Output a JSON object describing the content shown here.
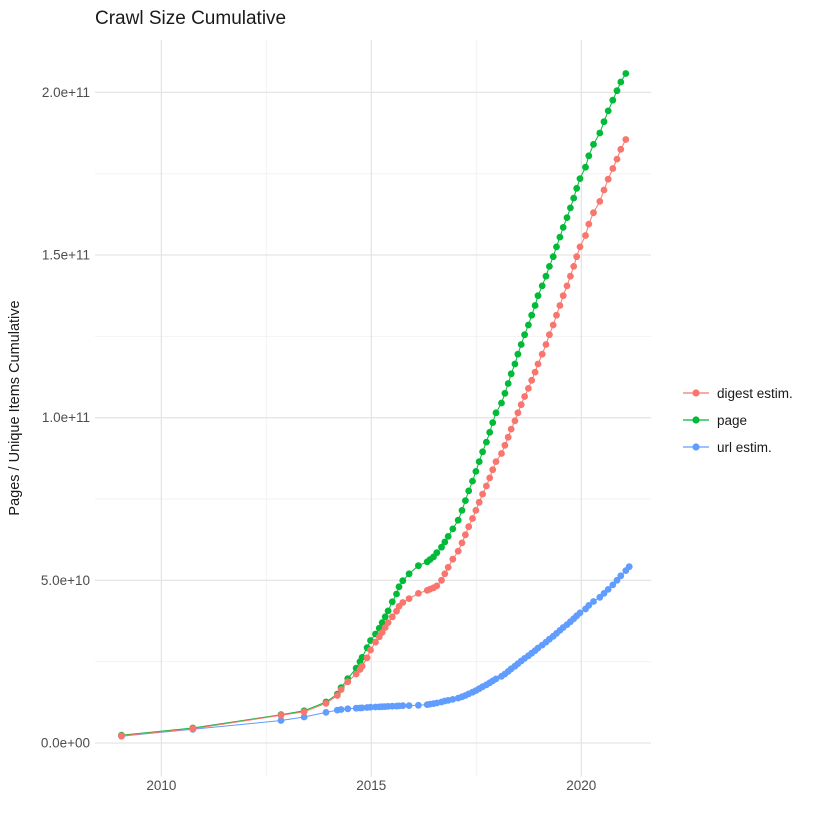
{
  "chart_data": {
    "type": "scatter",
    "title": "Crawl Size Cumulative",
    "xlabel": "",
    "ylabel": "Pages / Unique Items Cumulative",
    "value_unit": 1000000000.0,
    "x_range": [
      2008.42,
      2021.66
    ],
    "y_range_e9": [
      -10.3,
      216.1
    ],
    "grid": "on",
    "legend_position": "right",
    "x_axis": {
      "major_breaks": [
        {
          "label": "2010",
          "value": 2010
        },
        {
          "label": "2015",
          "value": 2015
        },
        {
          "label": "2020",
          "value": 2020
        }
      ],
      "minor_breaks": [
        2012.5,
        2017.5
      ]
    },
    "y_axis": {
      "major_breaks": [
        {
          "label": "0.0e+00",
          "value": 0
        },
        {
          "label": "5.0e+10",
          "value": 50
        },
        {
          "label": "1.0e+11",
          "value": 100
        },
        {
          "label": "1.5e+11",
          "value": 150
        },
        {
          "label": "2.0e+11",
          "value": 200
        }
      ],
      "minor_breaks": [
        25,
        75,
        125,
        175
      ]
    },
    "colors": {
      "digest": "#F8766D",
      "page": "#00BA38",
      "url": "#619CFF",
      "grid_major": "#E5E5E5",
      "grid_minor": "#F2F2F2",
      "tick_text": "#4D4D4D",
      "title_text": "#1A1A1A",
      "legend_text": "#1A1A1A"
    },
    "series": [
      {
        "name": "digest estim.",
        "color_key": "digest",
        "points": [
          [
            2009.05,
            2.2
          ],
          [
            2010.75,
            4.4
          ],
          [
            2012.85,
            8.5
          ],
          [
            2013.4,
            9.6
          ],
          [
            2013.92,
            12.2
          ],
          [
            2014.19,
            14.6
          ],
          [
            2014.28,
            16.4
          ],
          [
            2014.44,
            18.8
          ],
          [
            2014.64,
            21.2
          ],
          [
            2014.73,
            22.6
          ],
          [
            2014.78,
            23.6
          ],
          [
            2014.9,
            26.2
          ],
          [
            2014.98,
            28.6
          ],
          [
            2015.1,
            31.0
          ],
          [
            2015.19,
            32.6
          ],
          [
            2015.26,
            34.0
          ],
          [
            2015.33,
            35.5
          ],
          [
            2015.4,
            37.0
          ],
          [
            2015.5,
            38.8
          ],
          [
            2015.6,
            40.5
          ],
          [
            2015.66,
            42.0
          ],
          [
            2015.75,
            43.2
          ],
          [
            2015.9,
            44.4
          ],
          [
            2016.12,
            46.0
          ],
          [
            2016.33,
            46.9
          ],
          [
            2016.4,
            47.3
          ],
          [
            2016.48,
            47.7
          ],
          [
            2016.56,
            48.3
          ],
          [
            2016.67,
            50.0
          ],
          [
            2016.75,
            52.0
          ],
          [
            2016.83,
            54.0
          ],
          [
            2016.94,
            56.5
          ],
          [
            2017.07,
            59.0
          ],
          [
            2017.16,
            61.5
          ],
          [
            2017.24,
            64.0
          ],
          [
            2017.32,
            66.5
          ],
          [
            2017.41,
            69.0
          ],
          [
            2017.49,
            71.5
          ],
          [
            2017.57,
            74.0
          ],
          [
            2017.65,
            76.5
          ],
          [
            2017.74,
            79.0
          ],
          [
            2017.82,
            81.5
          ],
          [
            2017.89,
            84.0
          ],
          [
            2017.97,
            86.5
          ],
          [
            2018.1,
            89.0
          ],
          [
            2018.18,
            91.5
          ],
          [
            2018.26,
            94.0
          ],
          [
            2018.33,
            96.5
          ],
          [
            2018.42,
            99.0
          ],
          [
            2018.49,
            101.5
          ],
          [
            2018.57,
            104.0
          ],
          [
            2018.65,
            106.5
          ],
          [
            2018.74,
            109.0
          ],
          [
            2018.82,
            111.5
          ],
          [
            2018.9,
            114.0
          ],
          [
            2018.97,
            116.5
          ],
          [
            2019.07,
            119.5
          ],
          [
            2019.16,
            122.5
          ],
          [
            2019.24,
            125.5
          ],
          [
            2019.33,
            128.5
          ],
          [
            2019.41,
            131.5
          ],
          [
            2019.49,
            134.5
          ],
          [
            2019.57,
            137.5
          ],
          [
            2019.66,
            140.5
          ],
          [
            2019.74,
            143.5
          ],
          [
            2019.82,
            146.5
          ],
          [
            2019.89,
            149.5
          ],
          [
            2019.97,
            152.5
          ],
          [
            2020.1,
            156.0
          ],
          [
            2020.18,
            159.5
          ],
          [
            2020.29,
            163.0
          ],
          [
            2020.44,
            166.5
          ],
          [
            2020.54,
            170.0
          ],
          [
            2020.64,
            173.3
          ],
          [
            2020.75,
            176.6
          ],
          [
            2020.85,
            179.5
          ],
          [
            2020.94,
            182.5
          ],
          [
            2021.06,
            185.5
          ]
        ]
      },
      {
        "name": "page",
        "color_key": "page",
        "points": [
          [
            2009.05,
            2.4
          ],
          [
            2010.75,
            4.6
          ],
          [
            2012.85,
            8.7
          ],
          [
            2013.4,
            9.9
          ],
          [
            2013.92,
            12.6
          ],
          [
            2014.19,
            15.0
          ],
          [
            2014.28,
            17.0
          ],
          [
            2014.44,
            19.8
          ],
          [
            2014.64,
            23.0
          ],
          [
            2014.73,
            25.0
          ],
          [
            2014.78,
            26.3
          ],
          [
            2014.9,
            29.3
          ],
          [
            2014.98,
            31.5
          ],
          [
            2015.1,
            33.5
          ],
          [
            2015.19,
            35.3
          ],
          [
            2015.26,
            37.0
          ],
          [
            2015.33,
            38.8
          ],
          [
            2015.4,
            40.6
          ],
          [
            2015.5,
            43.4
          ],
          [
            2015.6,
            45.8
          ],
          [
            2015.66,
            48.0
          ],
          [
            2015.75,
            49.9
          ],
          [
            2015.9,
            52.0
          ],
          [
            2016.12,
            54.5
          ],
          [
            2016.33,
            55.7
          ],
          [
            2016.4,
            56.4
          ],
          [
            2016.48,
            57.2
          ],
          [
            2016.56,
            58.5
          ],
          [
            2016.67,
            60.2
          ],
          [
            2016.75,
            61.8
          ],
          [
            2016.83,
            63.5
          ],
          [
            2016.94,
            65.8
          ],
          [
            2017.07,
            68.5
          ],
          [
            2017.16,
            71.5
          ],
          [
            2017.24,
            74.5
          ],
          [
            2017.32,
            77.5
          ],
          [
            2017.41,
            80.5
          ],
          [
            2017.49,
            83.5
          ],
          [
            2017.57,
            86.5
          ],
          [
            2017.65,
            89.5
          ],
          [
            2017.74,
            92.5
          ],
          [
            2017.82,
            95.5
          ],
          [
            2017.89,
            98.5
          ],
          [
            2017.97,
            101.5
          ],
          [
            2018.1,
            104.5
          ],
          [
            2018.18,
            107.5
          ],
          [
            2018.26,
            110.5
          ],
          [
            2018.33,
            113.5
          ],
          [
            2018.42,
            116.5
          ],
          [
            2018.49,
            119.5
          ],
          [
            2018.57,
            122.5
          ],
          [
            2018.65,
            125.5
          ],
          [
            2018.74,
            128.5
          ],
          [
            2018.82,
            131.5
          ],
          [
            2018.9,
            134.5
          ],
          [
            2018.97,
            137.5
          ],
          [
            2019.07,
            140.5
          ],
          [
            2019.16,
            143.5
          ],
          [
            2019.24,
            146.5
          ],
          [
            2019.33,
            149.5
          ],
          [
            2019.41,
            152.5
          ],
          [
            2019.49,
            155.5
          ],
          [
            2019.57,
            158.5
          ],
          [
            2019.66,
            161.5
          ],
          [
            2019.74,
            164.5
          ],
          [
            2019.82,
            167.5
          ],
          [
            2019.89,
            170.5
          ],
          [
            2019.97,
            173.5
          ],
          [
            2020.1,
            177.0
          ],
          [
            2020.18,
            180.5
          ],
          [
            2020.29,
            184.0
          ],
          [
            2020.44,
            187.5
          ],
          [
            2020.54,
            191.0
          ],
          [
            2020.64,
            194.3
          ],
          [
            2020.75,
            197.6
          ],
          [
            2020.85,
            200.5
          ],
          [
            2020.94,
            203.2
          ],
          [
            2021.06,
            205.8
          ]
        ]
      },
      {
        "name": "url estim.",
        "color_key": "url",
        "points": [
          [
            2009.05,
            2.1
          ],
          [
            2010.75,
            4.2
          ],
          [
            2012.85,
            6.9
          ],
          [
            2013.4,
            8.0
          ],
          [
            2013.92,
            9.4
          ],
          [
            2014.19,
            10.1
          ],
          [
            2014.28,
            10.3
          ],
          [
            2014.44,
            10.5
          ],
          [
            2014.64,
            10.7
          ],
          [
            2014.73,
            10.75
          ],
          [
            2014.78,
            10.8
          ],
          [
            2014.9,
            10.9
          ],
          [
            2014.98,
            11.0
          ],
          [
            2015.1,
            11.05
          ],
          [
            2015.19,
            11.1
          ],
          [
            2015.26,
            11.15
          ],
          [
            2015.33,
            11.2
          ],
          [
            2015.4,
            11.25
          ],
          [
            2015.5,
            11.3
          ],
          [
            2015.6,
            11.35
          ],
          [
            2015.66,
            11.4
          ],
          [
            2015.75,
            11.45
          ],
          [
            2015.9,
            11.5
          ],
          [
            2016.12,
            11.6
          ],
          [
            2016.33,
            11.8
          ],
          [
            2016.4,
            11.95
          ],
          [
            2016.48,
            12.1
          ],
          [
            2016.56,
            12.3
          ],
          [
            2016.67,
            12.6
          ],
          [
            2016.75,
            12.9
          ],
          [
            2016.83,
            13.1
          ],
          [
            2016.94,
            13.4
          ],
          [
            2017.07,
            13.8
          ],
          [
            2017.16,
            14.2
          ],
          [
            2017.24,
            14.6
          ],
          [
            2017.32,
            15.1
          ],
          [
            2017.41,
            15.6
          ],
          [
            2017.49,
            16.1
          ],
          [
            2017.57,
            16.7
          ],
          [
            2017.65,
            17.3
          ],
          [
            2017.74,
            17.9
          ],
          [
            2017.82,
            18.5
          ],
          [
            2017.89,
            19.1
          ],
          [
            2017.97,
            19.7
          ],
          [
            2018.1,
            20.5
          ],
          [
            2018.18,
            21.2
          ],
          [
            2018.26,
            22.0
          ],
          [
            2018.33,
            22.8
          ],
          [
            2018.42,
            23.6
          ],
          [
            2018.49,
            24.4
          ],
          [
            2018.57,
            25.2
          ],
          [
            2018.65,
            26.0
          ],
          [
            2018.74,
            26.8
          ],
          [
            2018.82,
            27.6
          ],
          [
            2018.9,
            28.4
          ],
          [
            2018.97,
            29.2
          ],
          [
            2019.07,
            30.1
          ],
          [
            2019.16,
            31.0
          ],
          [
            2019.24,
            31.9
          ],
          [
            2019.33,
            32.8
          ],
          [
            2019.41,
            33.7
          ],
          [
            2019.49,
            34.6
          ],
          [
            2019.57,
            35.5
          ],
          [
            2019.66,
            36.4
          ],
          [
            2019.74,
            37.3
          ],
          [
            2019.82,
            38.2
          ],
          [
            2019.89,
            39.1
          ],
          [
            2019.97,
            40.0
          ],
          [
            2020.1,
            41.2
          ],
          [
            2020.18,
            42.3
          ],
          [
            2020.29,
            43.5
          ],
          [
            2020.44,
            44.8
          ],
          [
            2020.54,
            46.0
          ],
          [
            2020.64,
            47.2
          ],
          [
            2020.75,
            48.6
          ],
          [
            2020.85,
            50.0
          ],
          [
            2020.94,
            51.4
          ],
          [
            2021.06,
            53.0
          ],
          [
            2021.14,
            54.2
          ]
        ]
      }
    ]
  }
}
